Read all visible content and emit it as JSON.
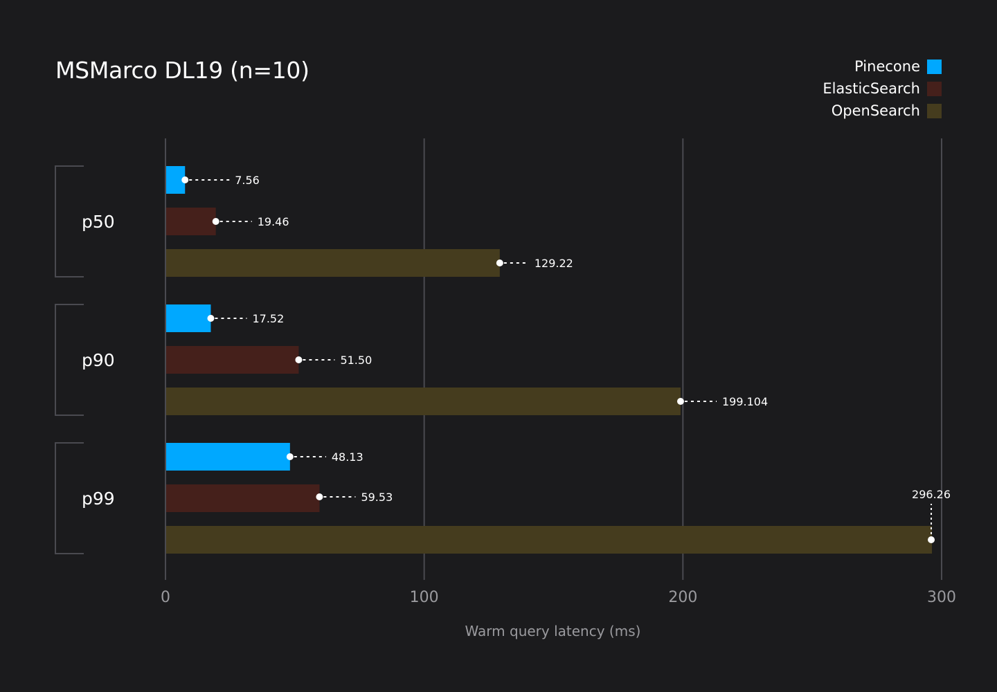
{
  "chart_data": {
    "type": "bar",
    "orientation": "horizontal",
    "title": "MSMarco DL19 (n=10)",
    "xlabel": "Warm query latency (ms)",
    "ylabel": "",
    "xlim": [
      0,
      300
    ],
    "x_ticks": [
      "0",
      "100",
      "200",
      "300"
    ],
    "x_tick_values": [
      0,
      100,
      200,
      300
    ],
    "grid": true,
    "legend_position": "top-right",
    "categories": [
      "p50",
      "p90",
      "p99"
    ],
    "series": [
      {
        "name": "Pinecone",
        "color": "#00a8ff",
        "values": [
          7.56,
          17.52,
          48.13
        ],
        "labels": [
          "7.56",
          "17.52",
          "48.13"
        ]
      },
      {
        "name": "ElasticSearch",
        "color": "#45201b",
        "values": [
          19.46,
          51.5,
          59.53
        ],
        "labels": [
          "19.46",
          "51.50",
          "59.53"
        ]
      },
      {
        "name": "OpenSearch",
        "color": "#453c1e",
        "values": [
          129.22,
          199.104,
          296.26
        ],
        "labels": [
          "129.22",
          "199.104",
          "296.26"
        ]
      }
    ]
  }
}
